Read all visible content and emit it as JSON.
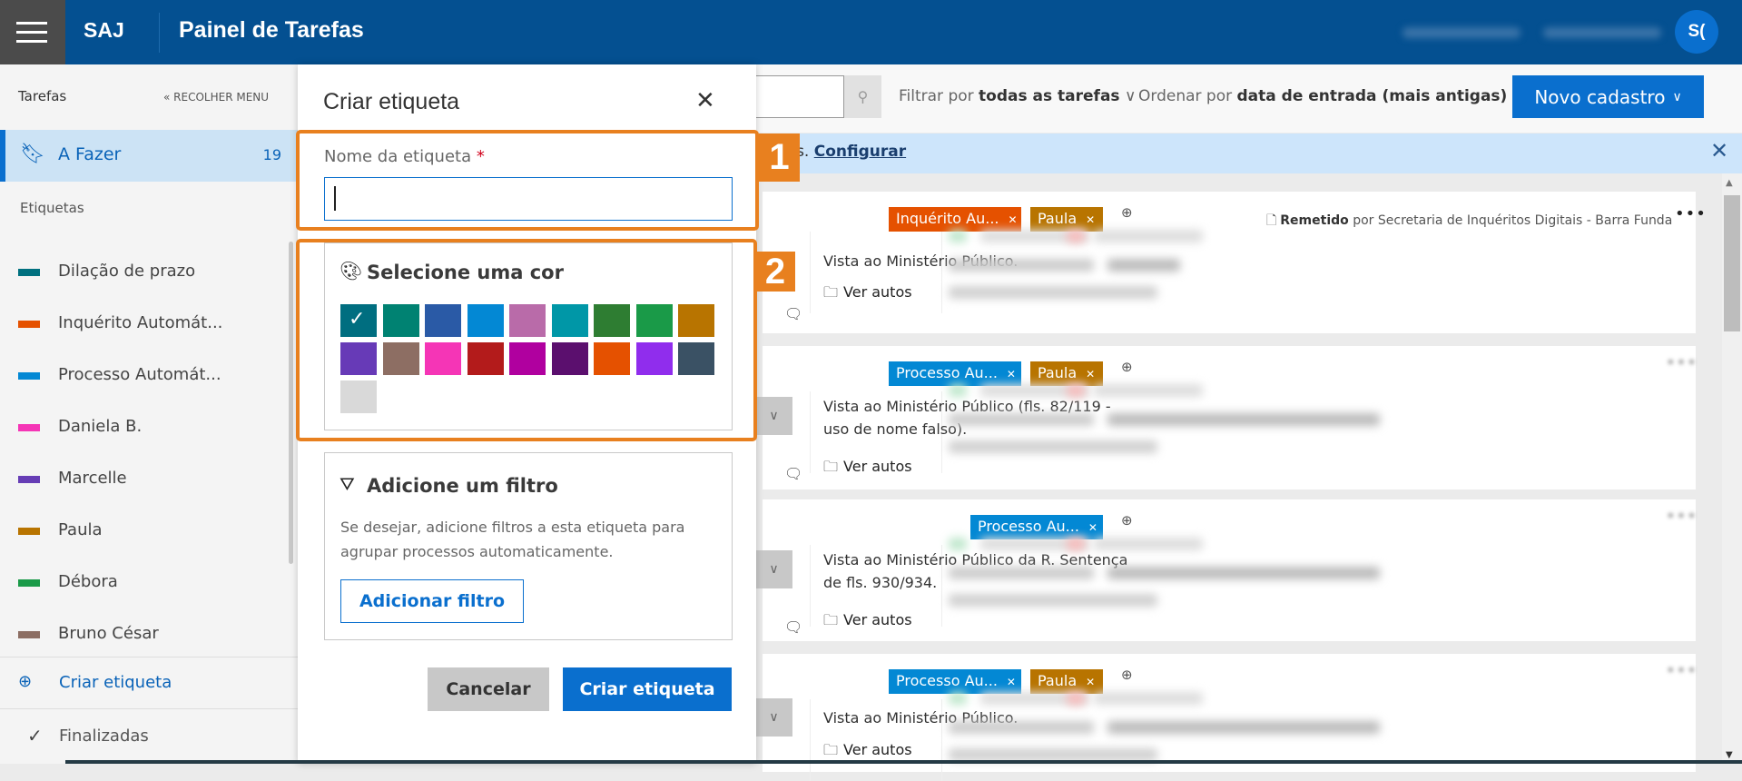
{
  "header": {
    "logo": "SAJ",
    "title": "Painel de Tarefas",
    "avatar": "S("
  },
  "sidebar": {
    "title": "Tarefas",
    "collapse": "RECOLHER MENU",
    "todo": {
      "label": "A Fazer",
      "count": "19"
    },
    "tags_title": "Etiquetas",
    "tags": [
      {
        "label": "Dilação de prazo",
        "color": "#00707f"
      },
      {
        "label": "Inquérito Automát...",
        "color": "#e55100"
      },
      {
        "label": "Processo Automát...",
        "color": "#0388d4"
      },
      {
        "label": "Daniela B.",
        "color": "#f535b6"
      },
      {
        "label": "Marcelle",
        "color": "#663db5"
      },
      {
        "label": "Paula",
        "color": "#b87400"
      },
      {
        "label": "Débora",
        "color": "#1a9a48"
      },
      {
        "label": "Bruno César",
        "color": "#8c6e63"
      }
    ],
    "create_tag": "Criar etiqueta",
    "finished": "Finalizadas"
  },
  "toolbar": {
    "filter_prefix": "Filtrar por",
    "filter_value": "todas as tarefas",
    "order_prefix": "Ordenar por",
    "order_value": "data de entrada (mais antigas)",
    "new_button": "Novo cadastro"
  },
  "banner": {
    "text": "tos.",
    "link": "Configurar"
  },
  "cards": [
    {
      "tags": [
        {
          "label": "Inquérito Au...",
          "color": "#e55100"
        },
        {
          "label": "Paula",
          "color": "#b87400"
        }
      ],
      "text": "Vista ao Ministério Público.",
      "link": "Ver autos",
      "sender_status": "Remetido",
      "sender_rest": "por Secretaria de Inquéritos Digitais - Barra Funda"
    },
    {
      "tags": [
        {
          "label": "Processo Au...",
          "color": "#0388d4"
        },
        {
          "label": "Paula",
          "color": "#b87400"
        }
      ],
      "text": "Vista ao Ministério Público (fls. 82/119 - uso de nome falso).",
      "link": "Ver autos"
    },
    {
      "tags": [
        {
          "label": "Processo Au...",
          "color": "#0388d4"
        }
      ],
      "text": "Vista ao Ministério Público da R. Sentença de fls. 930/934.",
      "link": "Ver autos"
    },
    {
      "tags": [
        {
          "label": "Processo Au...",
          "color": "#0388d4"
        },
        {
          "label": "Paula",
          "color": "#b87400"
        }
      ],
      "text": "Vista ao Ministério Público.",
      "link": "Ver autos"
    }
  ],
  "modal": {
    "title": "Criar etiqueta",
    "name_label": "Nome da etiqueta",
    "required_mark": "*",
    "name_value": "",
    "color_title": "Selecione uma cor",
    "selected_color": "#006e80",
    "colors": [
      "#006e80",
      "#008272",
      "#2a5aa6",
      "#0388d4",
      "#b96ba9",
      "#0097a7",
      "#2e7d32",
      "#1a9a48",
      "#b87400",
      "#673ab7",
      "#8d6e63",
      "#f535b6",
      "#b31b1b",
      "#b0009f",
      "#5b0f6e",
      "#e55100",
      "#902ded",
      "#3a5164",
      "#d9d9d9"
    ],
    "filter_title": "Adicione um filtro",
    "filter_desc": "Se desejar, adicione filtros a esta etiqueta para agrupar processos automaticamente.",
    "add_filter": "Adicionar filtro",
    "cancel": "Cancelar",
    "create": "Criar etiqueta"
  },
  "annotations": {
    "step1": "1",
    "step2": "2",
    "highlight_color": "#e8801f"
  }
}
